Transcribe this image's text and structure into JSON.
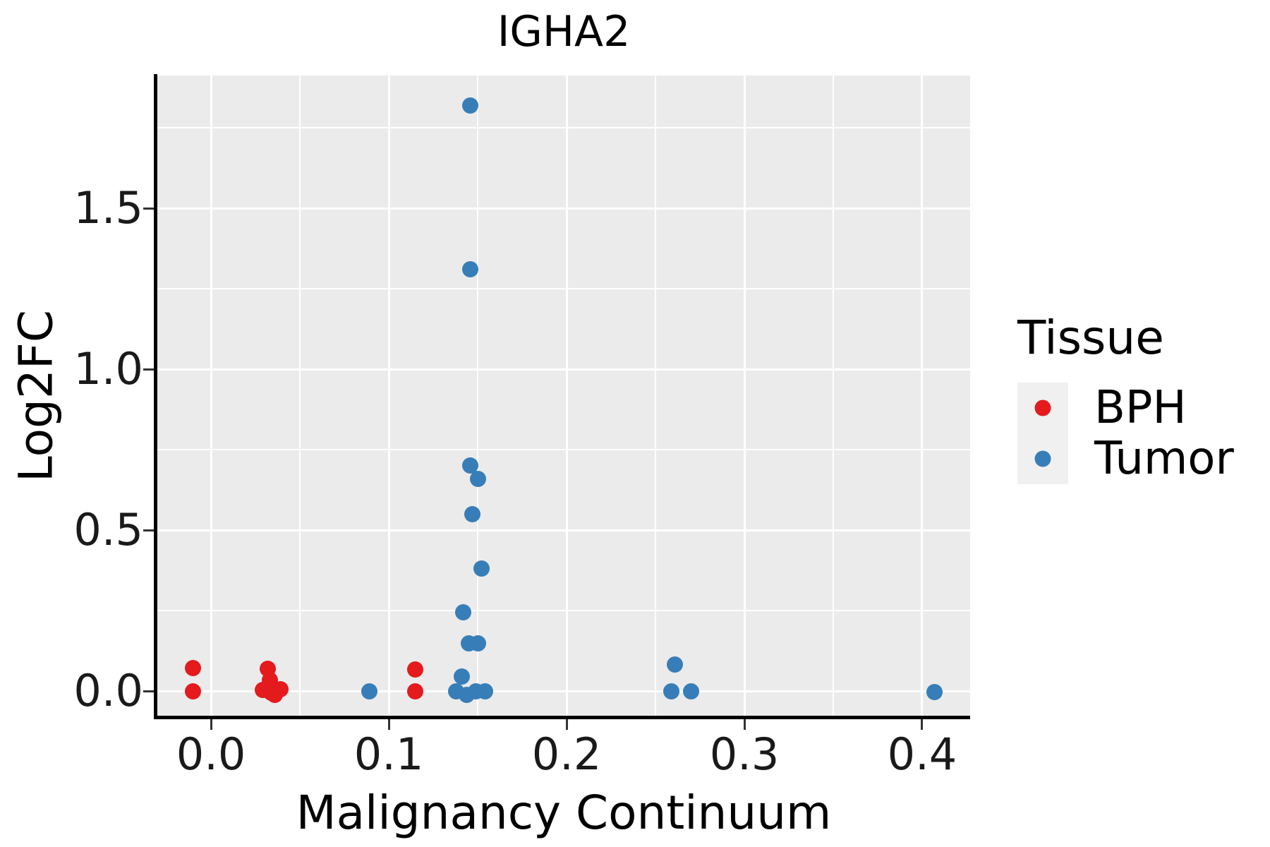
{
  "title": "IGHA2",
  "colors": {
    "bph_red": "#E41A1C",
    "tumor_blue": "#377EB8",
    "panel_background": "#EBEBEB",
    "gridline": "#FFFFFF",
    "axis_line": "#000000",
    "tick_mark": "#333333",
    "legend_key_background": "#F0F0F0"
  },
  "chart_data": {
    "type": "scatter",
    "title": "IGHA2",
    "xlabel": "Malignancy Continuum",
    "ylabel": "Log2FC",
    "x_ticks": [
      0.0,
      0.1,
      0.2,
      0.3,
      0.4
    ],
    "y_ticks": [
      0.0,
      0.5,
      1.0,
      1.5
    ],
    "x_tick_labels": [
      "0.0",
      "0.1",
      "0.2",
      "0.3",
      "0.4"
    ],
    "y_tick_labels": [
      "0.0",
      "0.5",
      "1.0",
      "1.5"
    ],
    "xlim": [
      -0.0302,
      0.427
    ],
    "ylim": [
      -0.0811,
      1.9123
    ],
    "grid": {
      "major": true,
      "minor": true,
      "color": "#FFFFFF",
      "panel": "#EBEBEB"
    },
    "legend": {
      "title": "Tissue",
      "position": "right",
      "items": [
        {
          "label": "BPH",
          "color": "#E41A1C"
        },
        {
          "label": "Tumor",
          "color": "#377EB8"
        }
      ]
    },
    "series": [
      {
        "name": "BPH",
        "color": "#E41A1C",
        "points": [
          [
            -0.01,
            0.072
          ],
          [
            -0.01,
            0.0
          ],
          [
            0.032,
            0.07
          ],
          [
            0.033,
            0.035
          ],
          [
            0.029,
            0.003
          ],
          [
            0.034,
            -0.005
          ],
          [
            0.039,
            0.005
          ],
          [
            0.036,
            -0.012
          ],
          [
            0.115,
            0.066
          ],
          [
            0.115,
            0.0
          ]
        ]
      },
      {
        "name": "Tumor",
        "color": "#377EB8",
        "points": [
          [
            0.146,
            1.82
          ],
          [
            0.146,
            1.31
          ],
          [
            0.146,
            0.7
          ],
          [
            0.15,
            0.66
          ],
          [
            0.147,
            0.55
          ],
          [
            0.152,
            0.38
          ],
          [
            0.142,
            0.244
          ],
          [
            0.145,
            0.148
          ],
          [
            0.15,
            0.148
          ],
          [
            0.141,
            0.046
          ],
          [
            0.138,
            -0.002
          ],
          [
            0.144,
            -0.011
          ],
          [
            0.149,
            0.0
          ],
          [
            0.154,
            -0.002
          ],
          [
            0.089,
            0.0
          ],
          [
            0.261,
            0.083
          ],
          [
            0.259,
            0.0
          ],
          [
            0.27,
            0.0
          ],
          [
            0.407,
            -0.004
          ]
        ]
      }
    ]
  }
}
